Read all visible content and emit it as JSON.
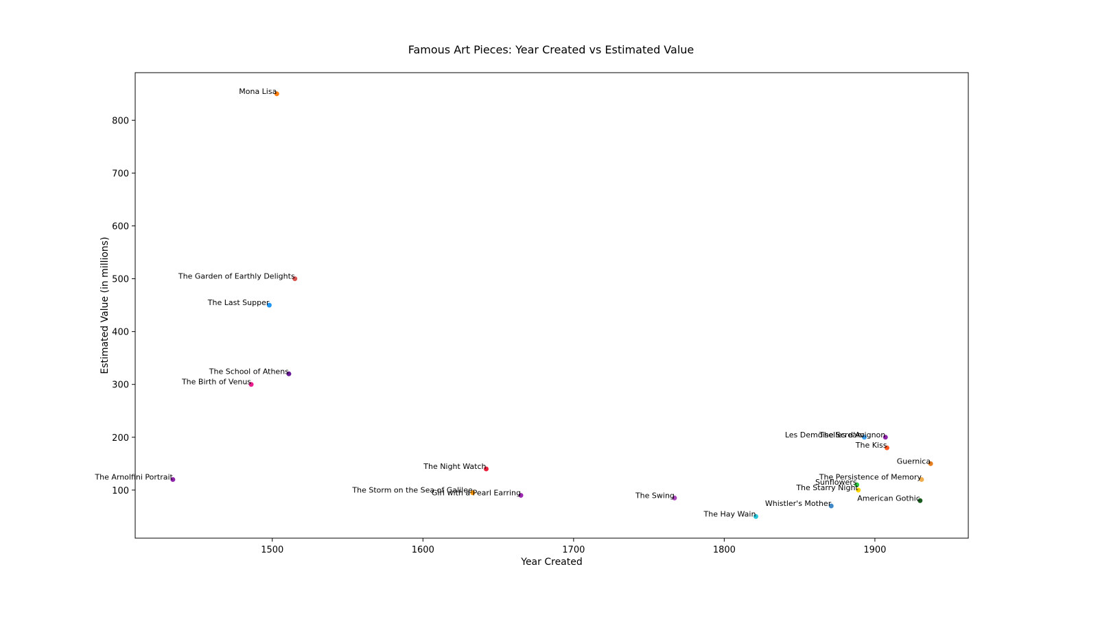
{
  "chart_data": {
    "type": "scatter",
    "title": "Famous Art Pieces: Year Created vs Estimated Value",
    "xlabel": "Year Created",
    "ylabel": "Estimated Value (in millions)",
    "xlim": [
      1409,
      1962
    ],
    "ylim": [
      9,
      890
    ],
    "xticks": [
      1500,
      1600,
      1700,
      1800,
      1900
    ],
    "yticks": [
      100,
      200,
      300,
      400,
      500,
      600,
      700,
      800
    ],
    "grid": false,
    "points": [
      {
        "label": "Mona Lisa",
        "x": 1503,
        "y": 850,
        "color": "#ff7f0e"
      },
      {
        "label": "The Garden of Earthly Delights",
        "x": 1515,
        "y": 500,
        "color": "#d9534f"
      },
      {
        "label": "The Last Supper",
        "x": 1498,
        "y": 450,
        "color": "#2196f3"
      },
      {
        "label": "The School of Athens",
        "x": 1511,
        "y": 320,
        "color": "#6a1b9a"
      },
      {
        "label": "The Birth of Venus",
        "x": 1486,
        "y": 300,
        "color": "#e91e8c"
      },
      {
        "label": "The Arnolfini Portrait",
        "x": 1434,
        "y": 120,
        "color": "#8e24aa"
      },
      {
        "label": "The Night Watch",
        "x": 1642,
        "y": 140,
        "color": "#e91e3a"
      },
      {
        "label": "The Storm on the Sea of Galilee",
        "x": 1633,
        "y": 95,
        "color": "#ff9800"
      },
      {
        "label": "Girl with a Pearl Earring",
        "x": 1665,
        "y": 90,
        "color": "#9c27b0"
      },
      {
        "label": "The Swing",
        "x": 1767,
        "y": 85,
        "color": "#ab47bc"
      },
      {
        "label": "The Hay Wain",
        "x": 1821,
        "y": 50,
        "color": "#26c6da"
      },
      {
        "label": "Whistler's Mother",
        "x": 1871,
        "y": 70,
        "color": "#3f88c5"
      },
      {
        "label": "The Scream",
        "x": 1893,
        "y": 200,
        "color": "#42a5f5"
      },
      {
        "label": "Les Demoiselles d'Avignon",
        "x": 1907,
        "y": 200,
        "color": "#8e24aa"
      },
      {
        "label": "The Kiss",
        "x": 1908,
        "y": 180,
        "color": "#ff5722"
      },
      {
        "label": "Guernica",
        "x": 1937,
        "y": 150,
        "color": "#e67e22"
      },
      {
        "label": "The Persistence of Memory",
        "x": 1931,
        "y": 120,
        "color": "#f0ad4e"
      },
      {
        "label": "Sunflowers",
        "x": 1888,
        "y": 110,
        "color": "#2ecc40"
      },
      {
        "label": "The Starry Night",
        "x": 1889,
        "y": 100,
        "color": "#ffd600"
      },
      {
        "label": "American Gothic",
        "x": 1930,
        "y": 80,
        "color": "#1b5e20"
      }
    ]
  }
}
